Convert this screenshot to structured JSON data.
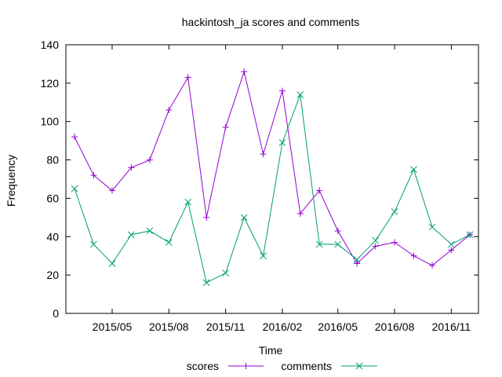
{
  "chart_data": {
    "type": "line",
    "title": "hackintosh_ja scores and comments",
    "xlabel": "Time",
    "ylabel": "Frequency",
    "ylim": [
      0,
      140
    ],
    "yticks": [
      0,
      20,
      40,
      60,
      80,
      100,
      120,
      140
    ],
    "xlim": [
      "2015-02-15",
      "2016-12-15"
    ],
    "xticks": [
      {
        "date": "2015-05-01",
        "label": "2015/05"
      },
      {
        "date": "2015-08-01",
        "label": "2015/08"
      },
      {
        "date": "2015-11-01",
        "label": "2015/11"
      },
      {
        "date": "2016-02-01",
        "label": "2016/02"
      },
      {
        "date": "2016-05-01",
        "label": "2016/05"
      },
      {
        "date": "2016-08-01",
        "label": "2016/08"
      },
      {
        "date": "2016-11-01",
        "label": "2016/11"
      }
    ],
    "x": [
      "2015-03-01",
      "2015-04-01",
      "2015-05-01",
      "2015-06-01",
      "2015-07-01",
      "2015-08-01",
      "2015-09-01",
      "2015-10-01",
      "2015-11-01",
      "2015-12-01",
      "2016-01-01",
      "2016-02-01",
      "2016-03-01",
      "2016-04-01",
      "2016-05-01",
      "2016-06-01",
      "2016-07-01",
      "2016-08-01",
      "2016-09-01",
      "2016-10-01",
      "2016-11-01",
      "2016-12-01"
    ],
    "legend_position": "bottom",
    "grid": false,
    "series": [
      {
        "name": "scores",
        "color": "#9400d3",
        "marker": "plus",
        "values": [
          92,
          72,
          64,
          76,
          80,
          106,
          123,
          50,
          97,
          126,
          83,
          116,
          52,
          64,
          43,
          26,
          35,
          37,
          30,
          25,
          33,
          41
        ]
      },
      {
        "name": "comments",
        "color": "#009e73",
        "marker": "cross",
        "values": [
          65,
          36,
          26,
          41,
          43,
          37,
          58,
          16,
          21,
          50,
          30,
          89,
          114,
          36,
          36,
          28,
          38,
          53,
          75,
          45,
          36,
          41
        ]
      }
    ]
  }
}
